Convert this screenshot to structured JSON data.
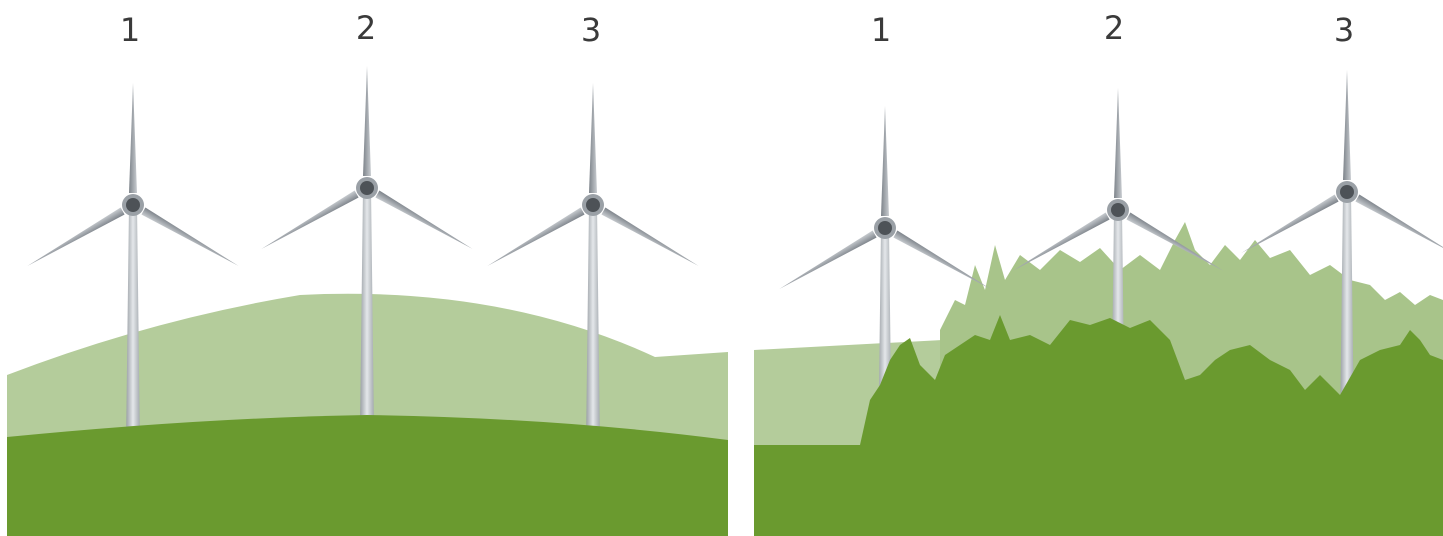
{
  "panels": [
    {
      "labels": [
        "1",
        "2",
        "3"
      ]
    },
    {
      "labels": [
        "1",
        "2",
        "3"
      ]
    }
  ]
}
